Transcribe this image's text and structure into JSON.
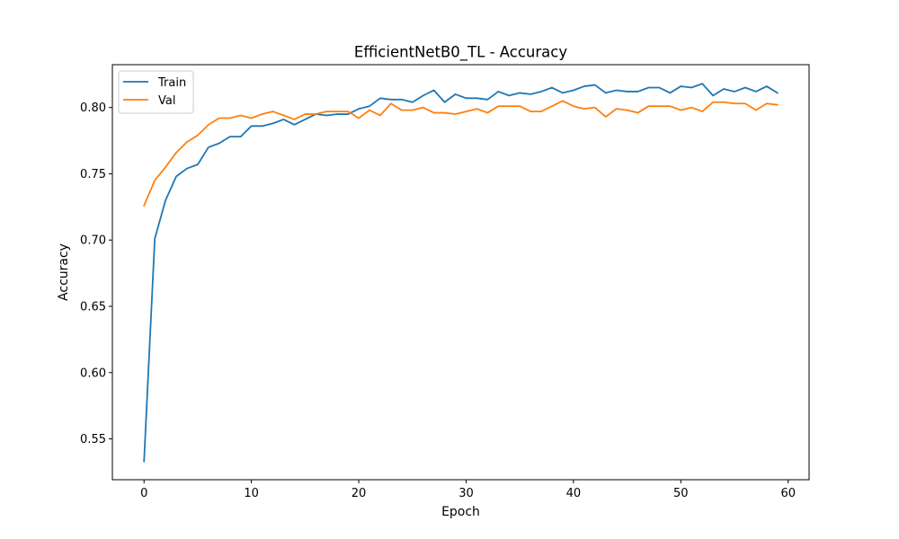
{
  "chart_data": {
    "type": "line",
    "title": "EfficientNetB0_TL - Accuracy",
    "xlabel": "Epoch",
    "ylabel": "Accuracy",
    "xlim": [
      -2.95,
      61.95
    ],
    "ylim": [
      0.5192,
      0.8323
    ],
    "x_ticks": [
      0,
      10,
      20,
      30,
      40,
      50,
      60
    ],
    "y_ticks": [
      0.55,
      0.6,
      0.65,
      0.7,
      0.75,
      0.8
    ],
    "y_tick_labels": [
      "0.55",
      "0.60",
      "0.65",
      "0.70",
      "0.75",
      "0.80"
    ],
    "grid": false,
    "legend_position": "upper-left",
    "x": [
      0,
      1,
      2,
      3,
      4,
      5,
      6,
      7,
      8,
      9,
      10,
      11,
      12,
      13,
      14,
      15,
      16,
      17,
      18,
      19,
      20,
      21,
      22,
      23,
      24,
      25,
      26,
      27,
      28,
      29,
      30,
      31,
      32,
      33,
      34,
      35,
      36,
      37,
      38,
      39,
      40,
      41,
      42,
      43,
      44,
      45,
      46,
      47,
      48,
      49,
      50,
      51,
      52,
      53,
      54,
      55,
      56,
      57,
      58,
      59
    ],
    "series": [
      {
        "name": "Train",
        "color": "#1f77b4",
        "values": [
          0.533,
          0.701,
          0.73,
          0.748,
          0.754,
          0.757,
          0.77,
          0.773,
          0.778,
          0.778,
          0.786,
          0.786,
          0.788,
          0.791,
          0.787,
          0.791,
          0.795,
          0.794,
          0.795,
          0.795,
          0.799,
          0.801,
          0.807,
          0.806,
          0.806,
          0.804,
          0.809,
          0.813,
          0.804,
          0.81,
          0.807,
          0.807,
          0.806,
          0.812,
          0.809,
          0.811,
          0.81,
          0.812,
          0.815,
          0.811,
          0.813,
          0.816,
          0.817,
          0.811,
          0.813,
          0.812,
          0.812,
          0.815,
          0.815,
          0.811,
          0.816,
          0.815,
          0.818,
          0.809,
          0.814,
          0.812,
          0.815,
          0.812,
          0.816,
          0.811
        ]
      },
      {
        "name": "Val",
        "color": "#ff7f0e",
        "values": [
          0.726,
          0.745,
          0.755,
          0.766,
          0.774,
          0.779,
          0.787,
          0.792,
          0.792,
          0.794,
          0.792,
          0.795,
          0.797,
          0.794,
          0.791,
          0.795,
          0.795,
          0.797,
          0.797,
          0.797,
          0.792,
          0.798,
          0.794,
          0.803,
          0.798,
          0.798,
          0.8,
          0.796,
          0.796,
          0.795,
          0.797,
          0.799,
          0.796,
          0.801,
          0.801,
          0.801,
          0.797,
          0.797,
          0.801,
          0.805,
          0.801,
          0.799,
          0.8,
          0.793,
          0.799,
          0.798,
          0.796,
          0.801,
          0.801,
          0.801,
          0.798,
          0.8,
          0.797,
          0.804,
          0.804,
          0.803,
          0.803,
          0.798,
          0.803,
          0.802
        ]
      }
    ]
  }
}
